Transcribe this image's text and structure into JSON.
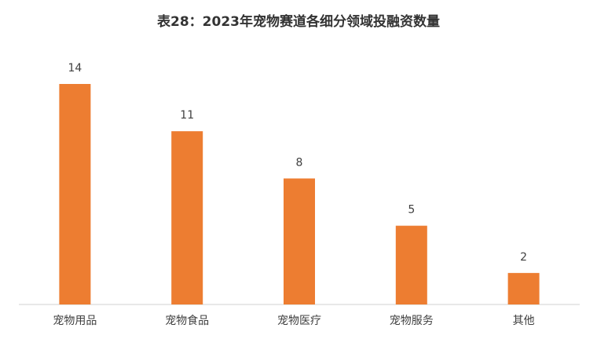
{
  "chart_data": {
    "type": "bar",
    "title": "表28：2023年宠物赛道各细分领域投融资数量",
    "categories": [
      "宠物用品",
      "宠物食品",
      "宠物医疗",
      "宠物服务",
      "其他"
    ],
    "values": [
      14,
      11,
      8,
      5,
      2
    ],
    "color": "#ed7d31"
  }
}
